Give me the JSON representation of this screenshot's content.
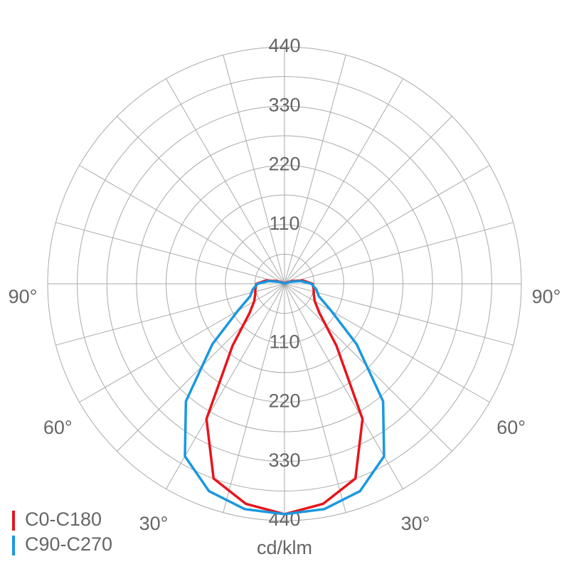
{
  "chart_data": {
    "type": "polar",
    "unit": "cd/klm",
    "rlim": [
      0,
      440
    ],
    "rticks": [
      110,
      220,
      330,
      440
    ],
    "rminor": [
      55,
      165,
      275,
      385
    ],
    "angle_grid": [
      0,
      15,
      30,
      45,
      60,
      75,
      90,
      105,
      120,
      135,
      150,
      165
    ],
    "angle_ticks": [
      {
        "value": 90,
        "label": "90°"
      },
      {
        "value": 60,
        "label": "60°"
      },
      {
        "value": 30,
        "label": "30°"
      }
    ],
    "angles": [
      0,
      10,
      20,
      30,
      40,
      50,
      60,
      70,
      80,
      90,
      100,
      110,
      120,
      130,
      140,
      150,
      160,
      170,
      180
    ],
    "series": [
      {
        "name": "C0-C180",
        "color": "#e8141c",
        "values": [
          428,
          415,
          385,
          290,
          150,
          85,
          65,
          58,
          55,
          52,
          35,
          15,
          5,
          0,
          0,
          0,
          0,
          0,
          0
        ]
      },
      {
        "name": "C90-C270",
        "color": "#1a98e0",
        "values": [
          428,
          425,
          410,
          370,
          285,
          175,
          100,
          68,
          60,
          50,
          30,
          10,
          0,
          0,
          0,
          0,
          0,
          0,
          0
        ]
      }
    ]
  }
}
